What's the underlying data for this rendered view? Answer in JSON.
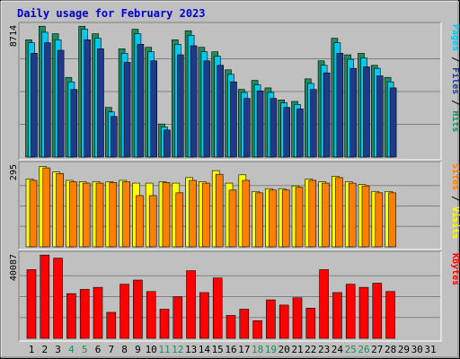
{
  "chart_data": {
    "type": "bar",
    "title": "Daily usage for February 2023",
    "categories": [
      "1",
      "2",
      "3",
      "4",
      "5",
      "6",
      "7",
      "8",
      "9",
      "10",
      "11",
      "12",
      "13",
      "14",
      "15",
      "16",
      "17",
      "18",
      "19",
      "20",
      "21",
      "22",
      "23",
      "24",
      "25",
      "26",
      "27",
      "28",
      "29",
      "30",
      "31"
    ],
    "weekend_days": [
      4,
      5,
      11,
      12,
      18,
      19,
      25,
      26
    ],
    "colors": {
      "title": "#0000cc",
      "background": "#c0c0c0",
      "hits": "#1f8a5c",
      "files": "#00c8f0",
      "pages": "#1e3a8a",
      "visits": "#ffff00",
      "sites": "#ff8000",
      "kbytes": "#ff0000",
      "weekend_label": "#1f8a5c",
      "weekday_label": "#000000"
    },
    "panels": [
      {
        "key": "hits_files_pages",
        "y_max_label": "8714",
        "ylim": [
          0,
          8714
        ],
        "legend": [
          {
            "text": "Pages",
            "color": "#00c8f0"
          },
          {
            "text": " / ",
            "color": "#000000"
          },
          {
            "text": "Files",
            "color": "#1e3a8a"
          },
          {
            "text": " / ",
            "color": "#000000"
          },
          {
            "text": "Hits",
            "color": "#1f8a5c"
          }
        ],
        "series": [
          {
            "name": "Hits",
            "color": "#1f8a5c",
            "values": [
              7800,
              8700,
              8200,
              5300,
              8700,
              8200,
              3300,
              7200,
              8500,
              7300,
              2200,
              7800,
              8400,
              7300,
              7000,
              5800,
              4500,
              5100,
              4600,
              3800,
              3700,
              5200,
              6400,
              7900,
              6800,
              6900,
              6100,
              5300
            ]
          },
          {
            "name": "Files",
            "color": "#00c8f0",
            "values": [
              7600,
              8300,
              7800,
              5000,
              8500,
              7900,
              3000,
              6900,
              8200,
              7000,
              2000,
              7500,
              8100,
              7000,
              6700,
              5500,
              4300,
              4800,
              4300,
              3600,
              3500,
              4900,
              6100,
              7600,
              6500,
              6600,
              5900,
              5000
            ]
          },
          {
            "name": "Pages",
            "color": "#1e3a8a",
            "values": [
              6900,
              7600,
              7100,
              4500,
              7800,
              7200,
              2700,
              6300,
              7500,
              6400,
              1800,
              6800,
              7400,
              6400,
              6100,
              5000,
              3900,
              4400,
              3900,
              3300,
              3200,
              4500,
              5600,
              6900,
              5900,
              6000,
              5400,
              4600
            ]
          }
        ]
      },
      {
        "key": "visits_sites",
        "y_max_label": "295",
        "ylim": [
          0,
          295
        ],
        "legend": [
          {
            "text": "Sites",
            "color": "#ff8000"
          },
          {
            "text": " / ",
            "color": "#000000"
          },
          {
            "text": "Visits",
            "color": "#ffff00"
          }
        ],
        "series": [
          {
            "name": "Visits",
            "color": "#ffff00",
            "values": [
              245,
              290,
              270,
              240,
              235,
              235,
              235,
              240,
              230,
              230,
              235,
              230,
              250,
              235,
              275,
              230,
              260,
              200,
              210,
              210,
              220,
              245,
              235,
              255,
              235,
              225,
              200,
              200
            ]
          },
          {
            "name": "Sites",
            "color": "#ff8000",
            "values": [
              240,
              285,
              265,
              235,
              230,
              230,
              232,
              235,
              185,
              185,
              232,
              195,
              240,
              230,
              262,
              205,
              240,
              195,
              205,
              205,
              215,
              240,
              230,
              250,
              230,
              220,
              195,
              195
            ]
          }
        ]
      },
      {
        "key": "kbytes",
        "y_max_label": "40087",
        "ylim": [
          0,
          40087
        ],
        "legend": [
          {
            "text": "KBytes",
            "color": "#ff0000"
          }
        ],
        "series": [
          {
            "name": "KBytes",
            "color": "#ff0000",
            "values": [
              33000,
              40000,
              38500,
              21500,
              23500,
              24500,
              12500,
              26000,
              28000,
              22500,
              14000,
              20000,
              32500,
              22000,
              29000,
              11000,
              14000,
              8500,
              18500,
              16000,
              19500,
              14500,
              33000,
              22000,
              26000,
              24500,
              26500,
              22500
            ]
          }
        ]
      }
    ]
  }
}
